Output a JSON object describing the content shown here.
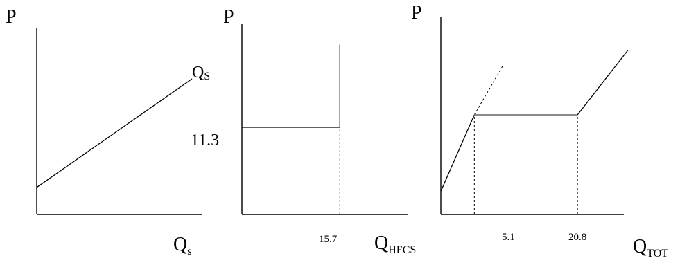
{
  "chart_data": [
    {
      "type": "line",
      "title": "",
      "ylabel": "P",
      "xlabel": "Q",
      "xlabel_sub": "s",
      "series": [
        {
          "name": "QS",
          "name_main": "Q",
          "name_sub": "S",
          "style": "solid",
          "points": [
            [
              0,
              0.14
            ],
            [
              0.8,
              0.7
            ]
          ]
        }
      ],
      "xlim": [
        0,
        1
      ],
      "ylim": [
        0,
        1
      ],
      "grid": false
    },
    {
      "type": "line",
      "title": "",
      "ylabel": "P",
      "xlabel": "Q",
      "xlabel_sub": "HFCS",
      "tick_x": [
        "15.7"
      ],
      "tick_y": [
        "11.3"
      ],
      "series": [
        {
          "name": "",
          "style": "solid",
          "points": [
            [
              0,
              11.3
            ],
            [
              15.7,
              11.3
            ],
            [
              15.7,
              22
            ]
          ]
        },
        {
          "name": "",
          "style": "dashed",
          "points": [
            [
              15.7,
              0
            ],
            [
              15.7,
              11.3
            ]
          ]
        }
      ],
      "xlim": [
        0,
        26
      ],
      "ylim": [
        0,
        26
      ],
      "grid": false
    },
    {
      "type": "line",
      "title": "",
      "ylabel": "P",
      "xlabel": "Q",
      "xlabel_sub": "TOT",
      "tick_x": [
        "5.1",
        "20.8"
      ],
      "series": [
        {
          "name": "",
          "style": "solid",
          "points": [
            [
              0,
              0.14
            ],
            [
              5.1,
              0.6
            ]
          ]
        },
        {
          "name": "",
          "style": "dotted",
          "points": [
            [
              5.1,
              0.6
            ],
            [
              9.5,
              0.9
            ]
          ]
        },
        {
          "name": "",
          "style": "gray",
          "points": [
            [
              5.1,
              0.6
            ],
            [
              20.8,
              0.6
            ]
          ]
        },
        {
          "name": "",
          "style": "solid",
          "points": [
            [
              20.8,
              0.6
            ],
            [
              28.5,
              0.99
            ]
          ]
        },
        {
          "name": "",
          "style": "dashed",
          "points": [
            [
              5.1,
              0
            ],
            [
              5.1,
              0.6
            ]
          ]
        },
        {
          "name": "",
          "style": "dashed",
          "points": [
            [
              20.8,
              0
            ],
            [
              20.8,
              0.6
            ]
          ]
        }
      ],
      "xlim": [
        0,
        28.5
      ],
      "ylim": [
        0,
        1
      ],
      "grid": false
    }
  ]
}
